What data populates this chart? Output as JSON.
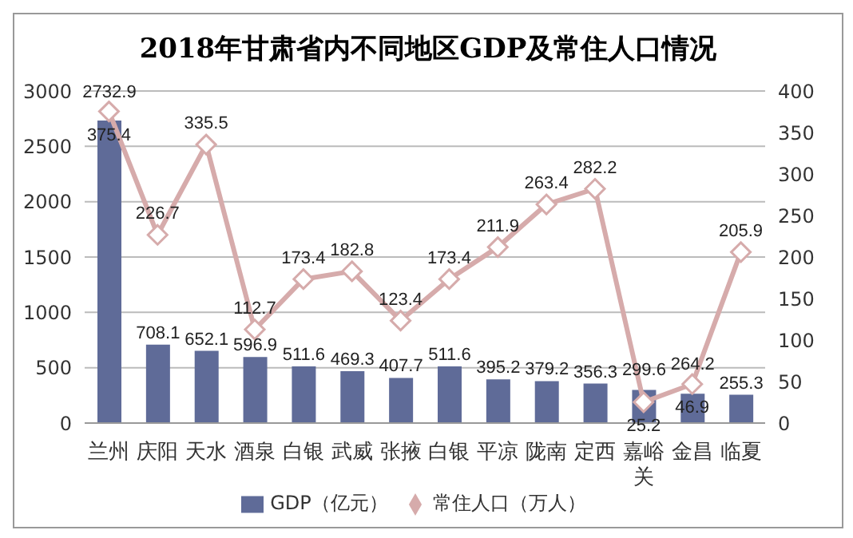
{
  "chart_data": {
    "type": "bar",
    "title": "2018年甘肃省内不同地区GDP及常住人口情况",
    "categories": [
      "兰州",
      "庆阳",
      "天水",
      "酒泉",
      "白银",
      "武威",
      "张掖",
      "白银",
      "平凉",
      "陇南",
      "定西",
      "嘉峪关",
      "金昌",
      "临夏"
    ],
    "series": [
      {
        "name": "GDP（亿元）",
        "color": "#5f6b98",
        "values": [
          2732.9,
          708.1,
          652.1,
          596.9,
          511.6,
          469.3,
          407.7,
          511.6,
          395.2,
          379.2,
          356.3,
          299.6,
          264.2,
          255.3
        ]
      },
      {
        "name": "常住人口（万人）",
        "type": "line",
        "axis": "y2",
        "color": "#d6abab",
        "marker": "diamond",
        "values": [
          375.4,
          226.7,
          335.5,
          112.7,
          173.4,
          182.8,
          123.4,
          173.4,
          211.9,
          263.4,
          282.2,
          25.2,
          46.9,
          205.9
        ]
      }
    ],
    "ylim": [
      0,
      3000
    ],
    "yticks": [
      0,
      500,
      1000,
      1500,
      2000,
      2500,
      3000
    ],
    "y2lim": [
      0,
      400
    ],
    "y2ticks": [
      0,
      50,
      100,
      150,
      200,
      250,
      300,
      350,
      400
    ],
    "grid": "y",
    "legend": "bottom",
    "data_labels": true
  }
}
